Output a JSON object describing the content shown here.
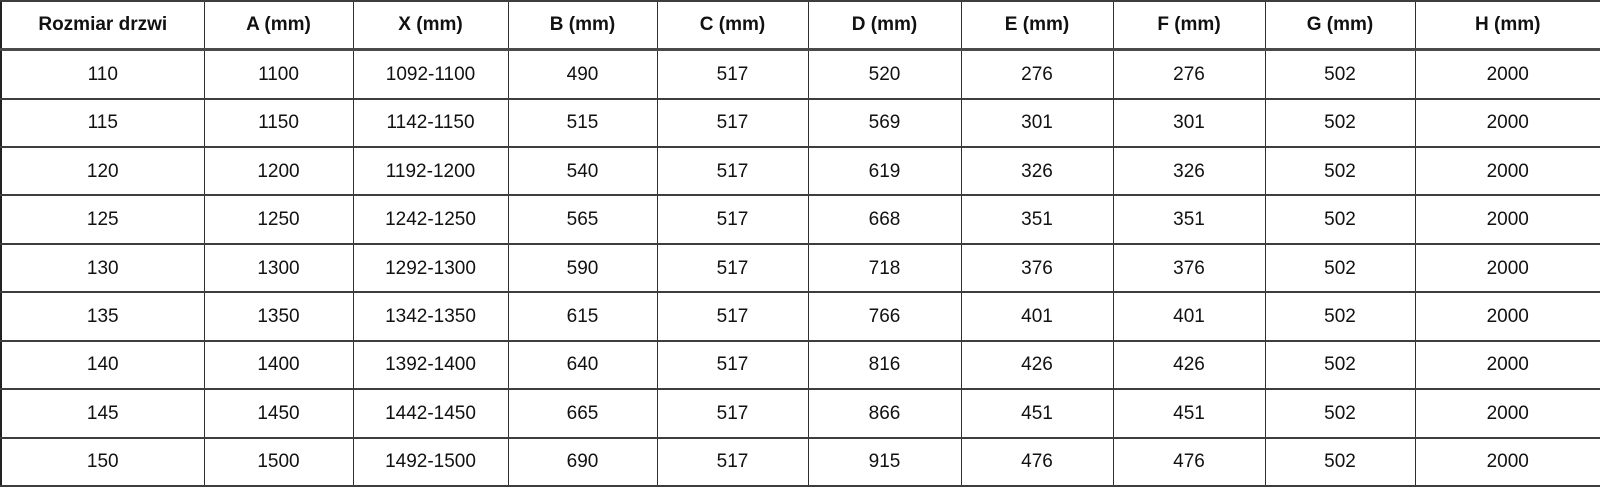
{
  "chart_data": {
    "type": "table",
    "title": "",
    "columns": [
      "Rozmiar drzwi",
      "A (mm)",
      "X (mm)",
      "B (mm)",
      "C (mm)",
      "D (mm)",
      "E (mm)",
      "F (mm)",
      "G (mm)",
      "H (mm)"
    ],
    "rows": [
      [
        "110",
        "1100",
        "1092-1100",
        "490",
        "517",
        "520",
        "276",
        "276",
        "502",
        "2000"
      ],
      [
        "115",
        "1150",
        "1142-1150",
        "515",
        "517",
        "569",
        "301",
        "301",
        "502",
        "2000"
      ],
      [
        "120",
        "1200",
        "1192-1200",
        "540",
        "517",
        "619",
        "326",
        "326",
        "502",
        "2000"
      ],
      [
        "125",
        "1250",
        "1242-1250",
        "565",
        "517",
        "668",
        "351",
        "351",
        "502",
        "2000"
      ],
      [
        "130",
        "1300",
        "1292-1300",
        "590",
        "517",
        "718",
        "376",
        "376",
        "502",
        "2000"
      ],
      [
        "135",
        "1350",
        "1342-1350",
        "615",
        "517",
        "766",
        "401",
        "401",
        "502",
        "2000"
      ],
      [
        "140",
        "1400",
        "1392-1400",
        "640",
        "517",
        "816",
        "426",
        "426",
        "502",
        "2000"
      ],
      [
        "145",
        "1450",
        "1442-1450",
        "665",
        "517",
        "866",
        "451",
        "451",
        "502",
        "2000"
      ],
      [
        "150",
        "1500",
        "1492-1500",
        "690",
        "517",
        "915",
        "476",
        "476",
        "502",
        "2000"
      ]
    ]
  }
}
